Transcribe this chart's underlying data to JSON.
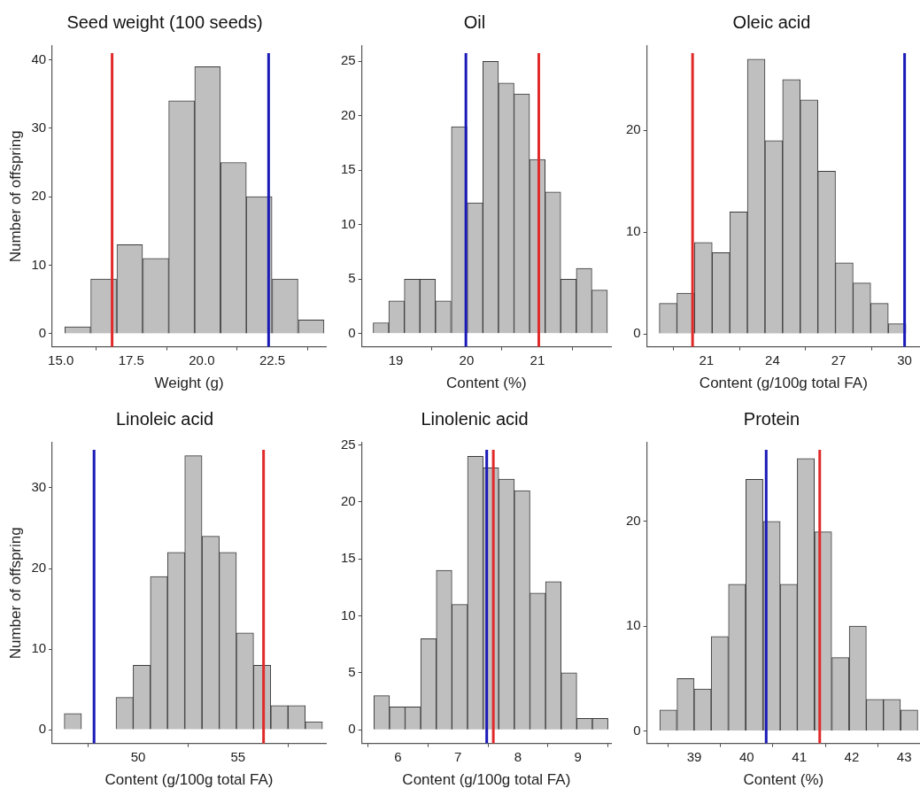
{
  "chart_data": [
    {
      "type": "histogram",
      "title": "Seed weight (100 seeds)",
      "xlabel": "Weight (g)",
      "ylabel": "Number of offspring",
      "color": "#bfbfbf",
      "bins": [
        15.14,
        16.06,
        16.98,
        17.91,
        18.83,
        19.74,
        20.67,
        21.58,
        22.49,
        23.42,
        24.34
      ],
      "values": [
        1,
        8,
        13,
        11,
        34,
        39,
        25,
        20,
        8,
        2
      ],
      "xlim": [
        14.7,
        24.4
      ],
      "xticks": [
        {
          "value": 15,
          "label": "15.0"
        },
        17.5,
        {
          "value": 20,
          "label": "20.0"
        },
        22.5
      ],
      "ylim": [
        -1.9,
        42
      ],
      "yticks": [
        0,
        10,
        20,
        30,
        40
      ],
      "ref_lines": [
        {
          "axis": "x",
          "value": 16.82,
          "color": "#e02a2a"
        },
        {
          "axis": "x",
          "value": 22.37,
          "color": "#1a1ab8"
        }
      ],
      "grid": false,
      "legend": false
    },
    {
      "type": "histogram",
      "title": "Oil",
      "xlabel": "Content (%)",
      "color": "#bfbfbf",
      "bins": [
        18.68,
        18.9,
        19.12,
        19.34,
        19.56,
        19.78,
        20.01,
        20.23,
        20.45,
        20.67,
        20.89,
        21.11,
        21.33,
        21.55,
        21.77,
        21.99
      ],
      "values": [
        1,
        3,
        5,
        5,
        3,
        19,
        12,
        25,
        23,
        22,
        16,
        13,
        5,
        6,
        4
      ],
      "xlim": [
        18.52,
        22.04
      ],
      "xticks": [
        19,
        20,
        21
      ],
      "ylim": [
        -1.2,
        26.4
      ],
      "yticks": [
        0,
        5,
        10,
        15,
        20,
        25
      ],
      "ref_lines": [
        {
          "axis": "x",
          "value": 19.99,
          "color": "#1a1ab8"
        },
        {
          "axis": "x",
          "value": 21.02,
          "color": "#e02a2a"
        }
      ],
      "grid": false,
      "legend": false
    },
    {
      "type": "histogram",
      "title": "Oleic acid",
      "xlabel": "Content (g/100g total FA)",
      "color": "#bfbfbf",
      "bins": [
        18.86,
        19.66,
        20.46,
        21.26,
        22.06,
        22.86,
        23.66,
        24.46,
        25.26,
        26.06,
        26.86,
        27.66,
        28.46,
        29.26,
        30.06
      ],
      "values": [
        3,
        4,
        9,
        8,
        12,
        27,
        19,
        25,
        23,
        16,
        7,
        5,
        3,
        1
      ],
      "xlim": [
        18.3,
        30.7
      ],
      "xticks": [
        21,
        24,
        27,
        30
      ],
      "ylim": [
        -1.26,
        28.3
      ],
      "yticks": [
        0,
        10,
        20
      ],
      "ref_lines": [
        {
          "axis": "x",
          "value": 20.37,
          "color": "#e02a2a"
        },
        {
          "axis": "x",
          "value": 30.0,
          "color": "#1a1ab8"
        }
      ],
      "grid": false,
      "legend": false
    },
    {
      "type": "histogram",
      "title": "Linoleic acid",
      "xlabel": "Content (g/100g total FA)",
      "ylabel": "Number of offspring",
      "color": "#bfbfbf",
      "bins": [
        46.3,
        47.16,
        48.02,
        48.89,
        49.75,
        50.61,
        51.47,
        52.33,
        53.2,
        54.06,
        54.92,
        55.78,
        56.64,
        57.51,
        58.37,
        59.23
      ],
      "values": [
        2,
        0,
        0,
        4,
        8,
        19,
        22,
        34,
        24,
        22,
        12,
        8,
        3,
        3,
        1
      ],
      "xlim": [
        45.7,
        59.4
      ],
      "xticks": [
        50,
        55
      ],
      "ylim": [
        -1.7,
        35.6
      ],
      "yticks": [
        0,
        10,
        20,
        30
      ],
      "ref_lines": [
        {
          "axis": "x",
          "value": 47.79,
          "color": "#1a1ab8"
        },
        {
          "axis": "x",
          "value": 56.28,
          "color": "#e02a2a"
        }
      ],
      "grid": false,
      "legend": false
    },
    {
      "type": "histogram",
      "title": "Linolenic acid",
      "xlabel": "Content (g/100g total FA)",
      "color": "#bfbfbf",
      "bins": [
        5.6,
        5.86,
        6.12,
        6.38,
        6.64,
        6.9,
        7.16,
        7.42,
        7.68,
        7.94,
        8.2,
        8.46,
        8.72,
        8.98,
        9.24,
        9.5
      ],
      "values": [
        3,
        2,
        2,
        8,
        14,
        11,
        24,
        23,
        22,
        21,
        12,
        13,
        5,
        1,
        1
      ],
      "xlim": [
        5.4,
        9.55
      ],
      "xticks": [
        6,
        7,
        8,
        9
      ],
      "ylim": [
        -1.2,
        25.2
      ],
      "yticks": [
        0,
        5,
        10,
        15,
        20,
        25
      ],
      "ref_lines": [
        {
          "axis": "x",
          "value": 7.48,
          "color": "#1a1ab8"
        },
        {
          "axis": "x",
          "value": 7.59,
          "color": "#e02a2a"
        }
      ],
      "grid": false,
      "legend": false
    },
    {
      "type": "histogram",
      "title": "Protein",
      "xlabel": "Content (%)",
      "color": "#bfbfbf",
      "bins": [
        38.34,
        38.67,
        39.0,
        39.32,
        39.65,
        39.98,
        40.31,
        40.64,
        40.96,
        41.29,
        41.62,
        41.95,
        42.28,
        42.6,
        42.93,
        43.26
      ],
      "values": [
        2,
        5,
        4,
        9,
        14,
        24,
        20,
        14,
        26,
        19,
        7,
        10,
        3,
        3,
        2
      ],
      "xlim": [
        38.1,
        43.3
      ],
      "xticks": [
        39,
        40,
        41,
        42,
        43
      ],
      "ylim": [
        -1.2,
        27.5
      ],
      "yticks": [
        0,
        10,
        20
      ],
      "ref_lines": [
        {
          "axis": "x",
          "value": 40.37,
          "color": "#1a1ab8"
        },
        {
          "axis": "x",
          "value": 41.39,
          "color": "#e02a2a"
        }
      ],
      "grid": false,
      "legend": false
    }
  ]
}
